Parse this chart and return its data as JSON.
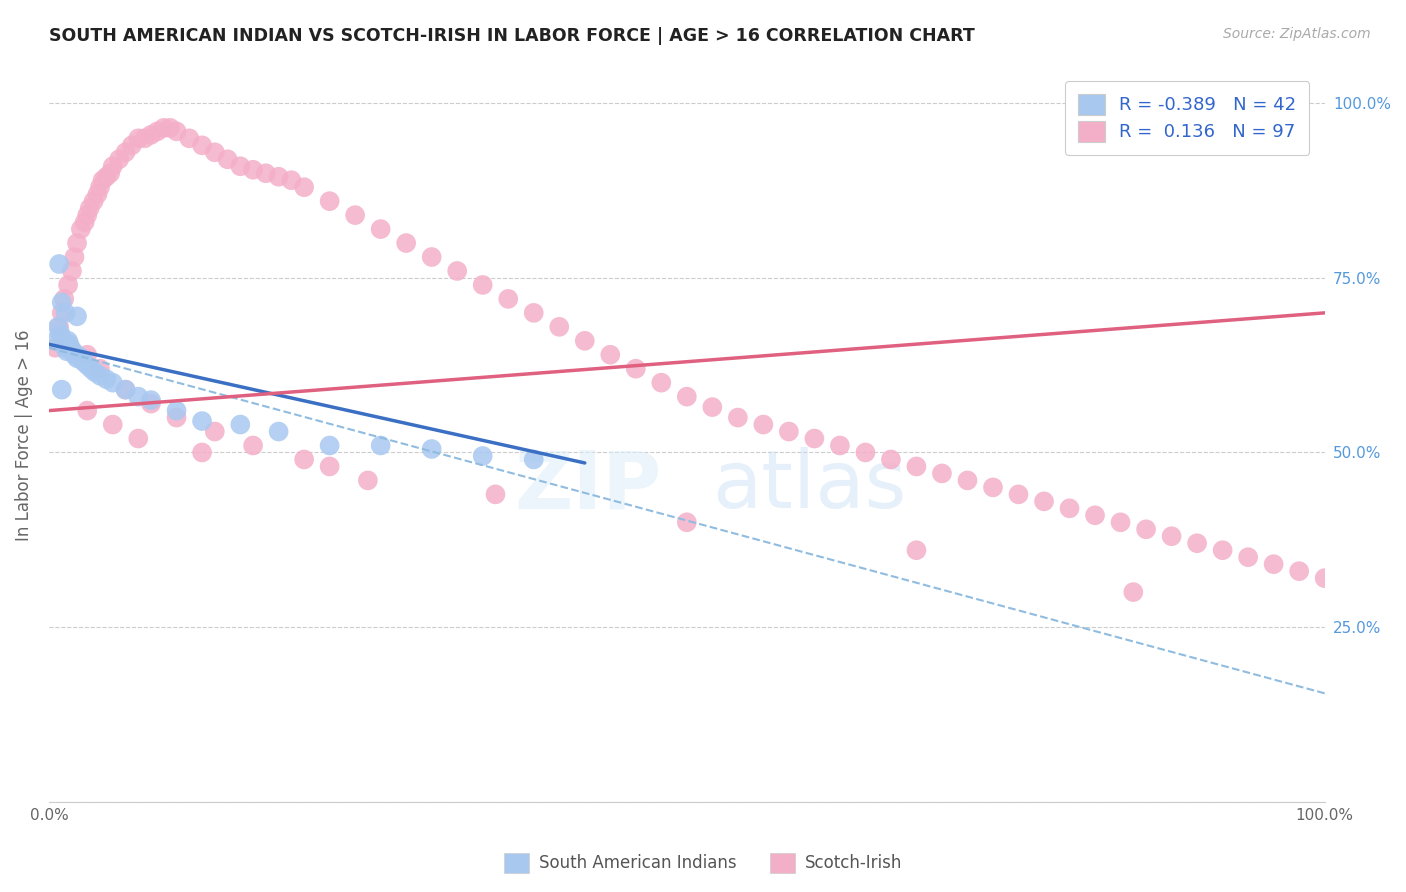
{
  "title": "SOUTH AMERICAN INDIAN VS SCOTCH-IRISH IN LABOR FORCE | AGE > 16 CORRELATION CHART",
  "source": "Source: ZipAtlas.com",
  "ylabel": "In Labor Force | Age > 16",
  "watermark": "ZIPatlas",
  "legend_r_blue": "-0.389",
  "legend_n_blue": "42",
  "legend_r_pink": "0.136",
  "legend_n_pink": "97",
  "blue_color": "#a8c8f0",
  "pink_color": "#f4afc8",
  "blue_line_color": "#3a6fc4",
  "pink_line_color": "#e06080",
  "dashed_line_color": "#90bce0",
  "blue_scatter_x": [
    0.005,
    0.007,
    0.009,
    0.01,
    0.011,
    0.012,
    0.013,
    0.014,
    0.015,
    0.016,
    0.017,
    0.018,
    0.019,
    0.02,
    0.021,
    0.022,
    0.023,
    0.025,
    0.027,
    0.03,
    0.033,
    0.036,
    0.04,
    0.045,
    0.05,
    0.06,
    0.07,
    0.08,
    0.1,
    0.12,
    0.15,
    0.18,
    0.22,
    0.26,
    0.3,
    0.34,
    0.38,
    0.008,
    0.01,
    0.013,
    0.022,
    0.01
  ],
  "blue_scatter_y": [
    0.66,
    0.68,
    0.67,
    0.665,
    0.66,
    0.655,
    0.65,
    0.645,
    0.66,
    0.655,
    0.65,
    0.645,
    0.645,
    0.64,
    0.64,
    0.635,
    0.638,
    0.635,
    0.63,
    0.625,
    0.62,
    0.615,
    0.61,
    0.605,
    0.6,
    0.59,
    0.58,
    0.575,
    0.56,
    0.545,
    0.54,
    0.53,
    0.51,
    0.51,
    0.505,
    0.495,
    0.49,
    0.77,
    0.715,
    0.7,
    0.695,
    0.59
  ],
  "pink_scatter_x": [
    0.005,
    0.008,
    0.01,
    0.012,
    0.015,
    0.018,
    0.02,
    0.022,
    0.025,
    0.028,
    0.03,
    0.032,
    0.035,
    0.038,
    0.04,
    0.042,
    0.045,
    0.048,
    0.05,
    0.055,
    0.06,
    0.065,
    0.07,
    0.075,
    0.08,
    0.085,
    0.09,
    0.095,
    0.1,
    0.11,
    0.12,
    0.13,
    0.14,
    0.15,
    0.16,
    0.17,
    0.18,
    0.19,
    0.2,
    0.22,
    0.24,
    0.26,
    0.28,
    0.3,
    0.32,
    0.34,
    0.36,
    0.38,
    0.4,
    0.42,
    0.44,
    0.46,
    0.48,
    0.5,
    0.52,
    0.54,
    0.56,
    0.58,
    0.6,
    0.62,
    0.64,
    0.66,
    0.68,
    0.7,
    0.72,
    0.74,
    0.76,
    0.78,
    0.8,
    0.82,
    0.84,
    0.86,
    0.88,
    0.9,
    0.92,
    0.94,
    0.96,
    0.98,
    1.0,
    0.03,
    0.04,
    0.06,
    0.08,
    0.1,
    0.13,
    0.16,
    0.2,
    0.25,
    0.03,
    0.05,
    0.07,
    0.12,
    0.22,
    0.35,
    0.5,
    0.68,
    0.85
  ],
  "pink_scatter_y": [
    0.65,
    0.68,
    0.7,
    0.72,
    0.74,
    0.76,
    0.78,
    0.8,
    0.82,
    0.83,
    0.84,
    0.85,
    0.86,
    0.87,
    0.88,
    0.89,
    0.895,
    0.9,
    0.91,
    0.92,
    0.93,
    0.94,
    0.95,
    0.95,
    0.955,
    0.96,
    0.965,
    0.965,
    0.96,
    0.95,
    0.94,
    0.93,
    0.92,
    0.91,
    0.905,
    0.9,
    0.895,
    0.89,
    0.88,
    0.86,
    0.84,
    0.82,
    0.8,
    0.78,
    0.76,
    0.74,
    0.72,
    0.7,
    0.68,
    0.66,
    0.64,
    0.62,
    0.6,
    0.58,
    0.565,
    0.55,
    0.54,
    0.53,
    0.52,
    0.51,
    0.5,
    0.49,
    0.48,
    0.47,
    0.46,
    0.45,
    0.44,
    0.43,
    0.42,
    0.41,
    0.4,
    0.39,
    0.38,
    0.37,
    0.36,
    0.35,
    0.34,
    0.33,
    0.32,
    0.64,
    0.62,
    0.59,
    0.57,
    0.55,
    0.53,
    0.51,
    0.49,
    0.46,
    0.56,
    0.54,
    0.52,
    0.5,
    0.48,
    0.44,
    0.4,
    0.36,
    0.3
  ],
  "blue_trend_x": [
    0.0,
    0.42
  ],
  "blue_trend_y": [
    0.655,
    0.485
  ],
  "pink_trend_x": [
    0.0,
    1.0
  ],
  "pink_trend_y": [
    0.56,
    0.7
  ],
  "dashed_trend_x": [
    0.0,
    1.0
  ],
  "dashed_trend_y": [
    0.65,
    0.155
  ],
  "xlim": [
    0.0,
    1.0
  ],
  "ylim": [
    0.0,
    1.05
  ],
  "ytick_positions": [
    0.0,
    0.25,
    0.5,
    0.75,
    1.0
  ],
  "ytick_labels_right": [
    "",
    "25.0%",
    "50.0%",
    "75.0%",
    "100.0%"
  ],
  "xtick_positions": [
    0.0,
    0.2,
    0.4,
    0.6,
    0.8,
    1.0
  ],
  "xtick_labels": [
    "0.0%",
    "",
    "",
    "",
    "",
    "100.0%"
  ]
}
